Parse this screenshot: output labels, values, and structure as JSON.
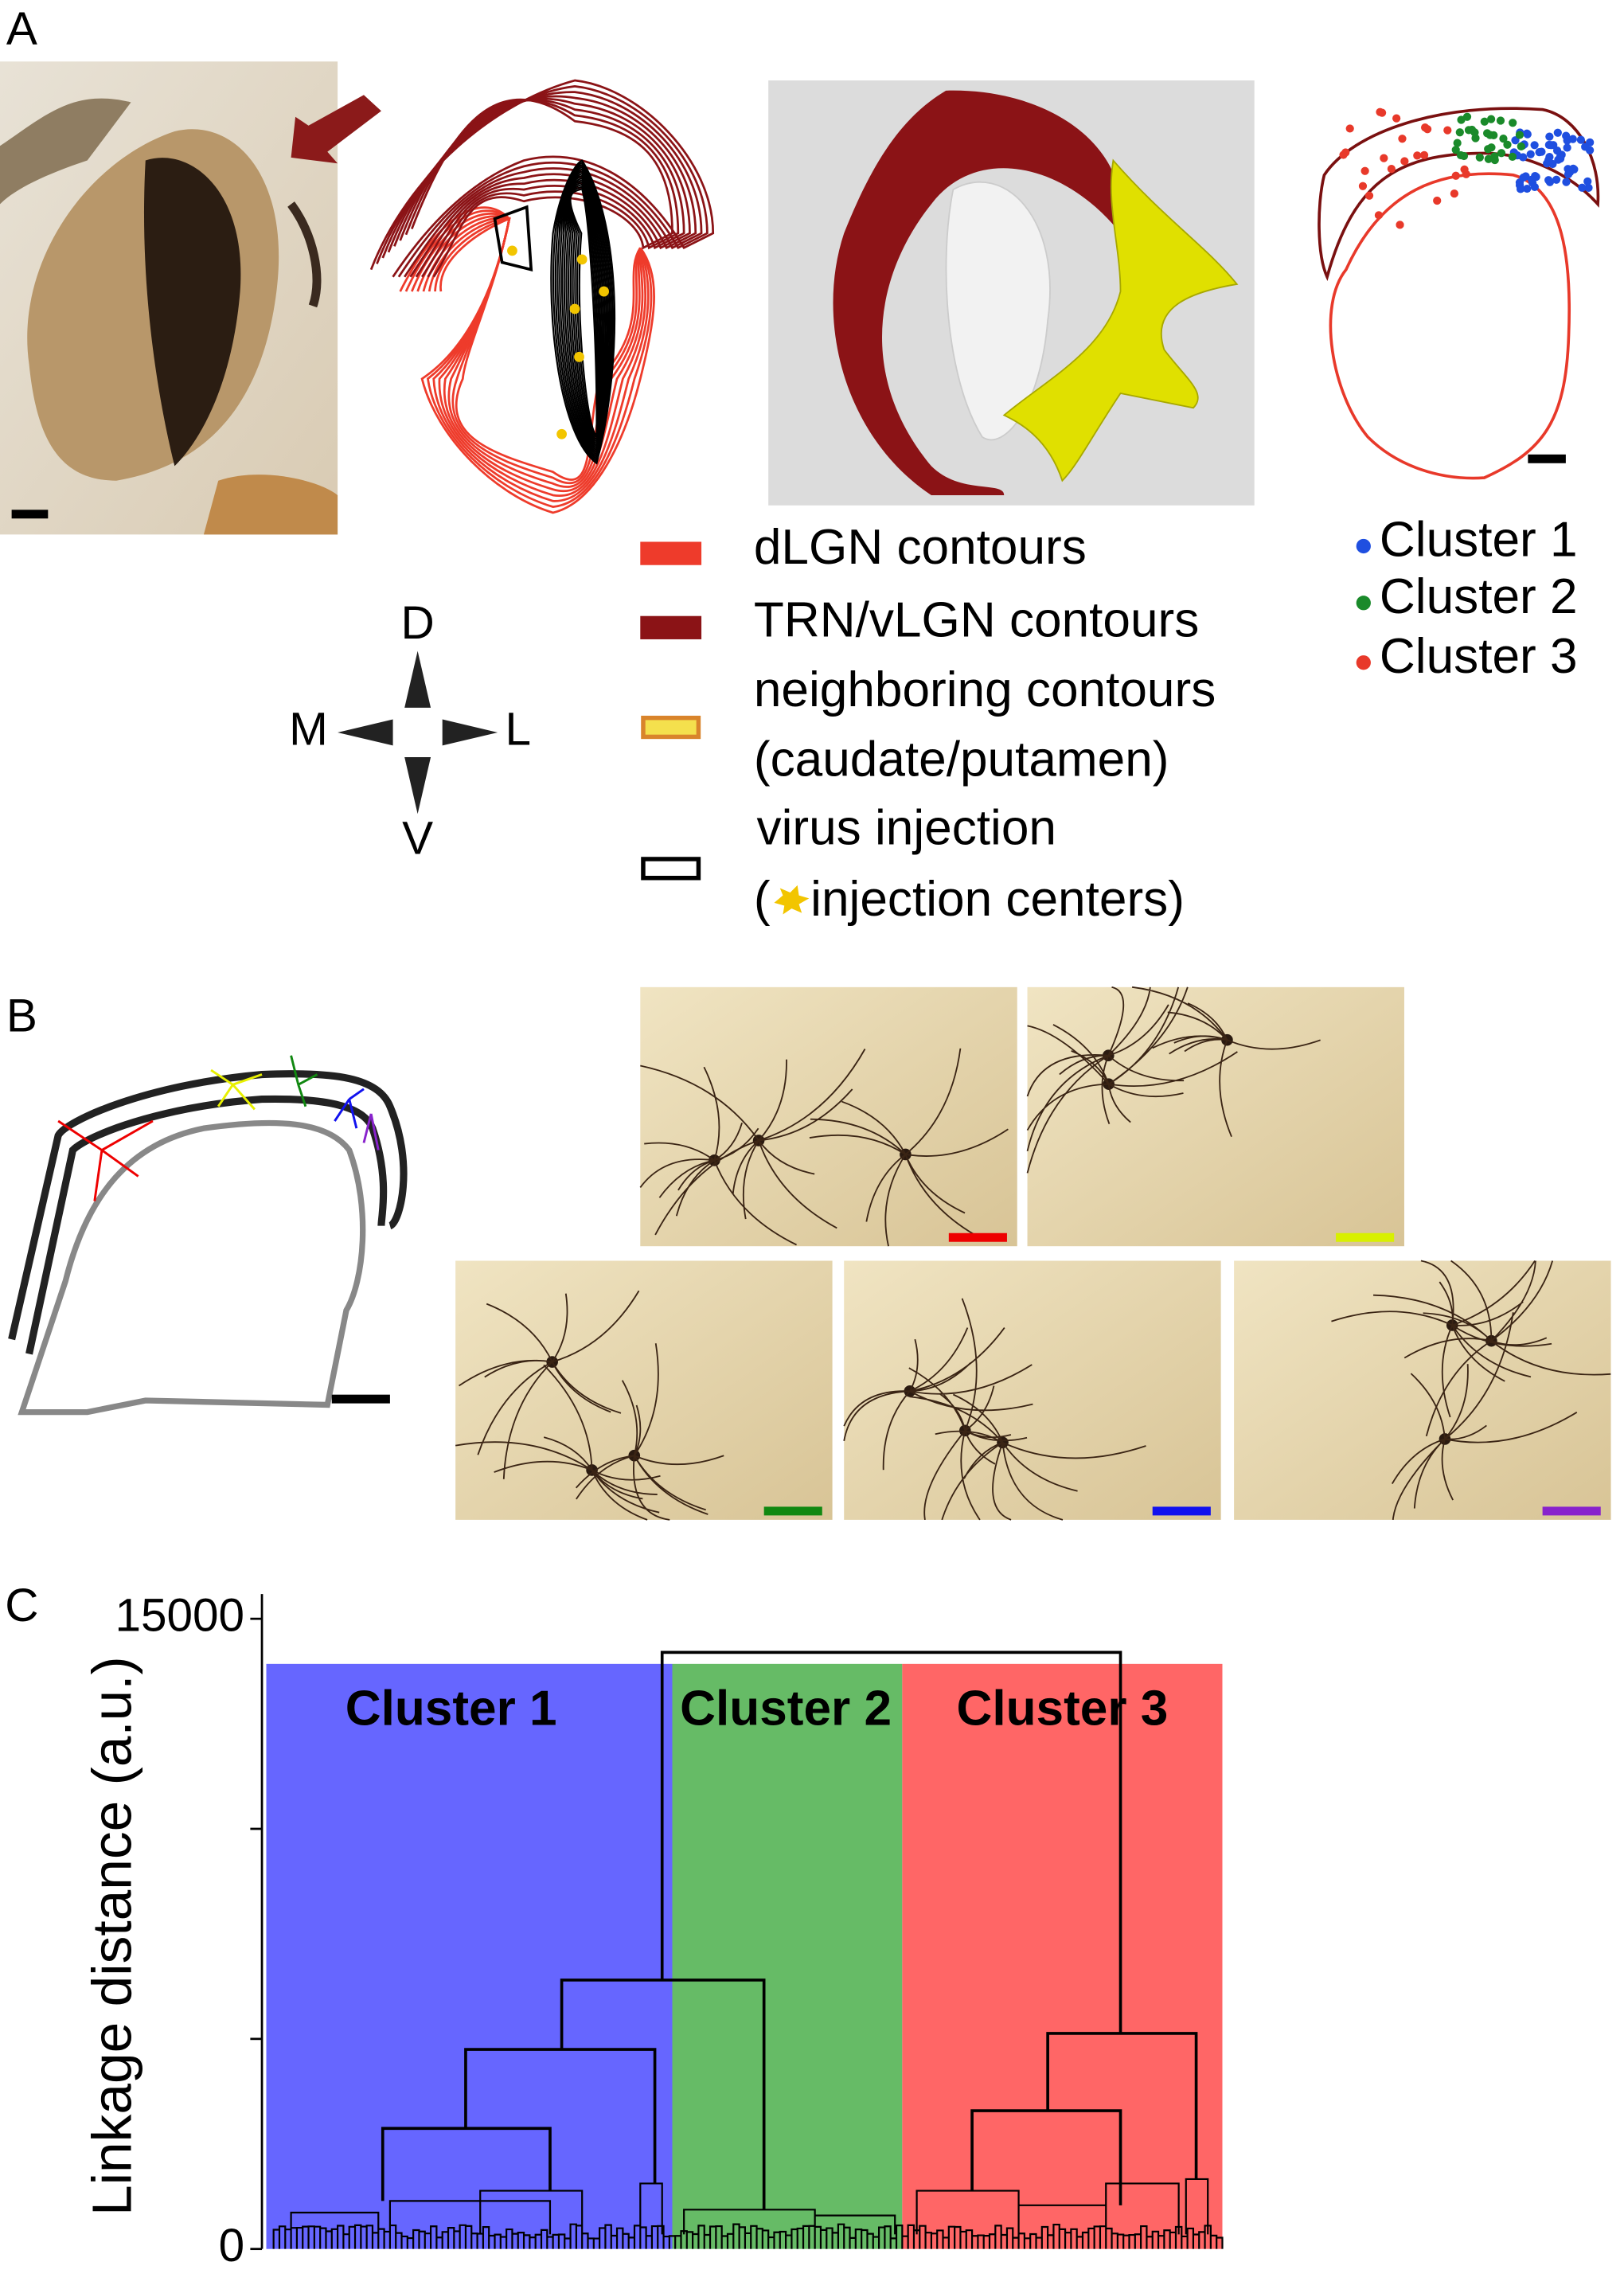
{
  "panel_a": {
    "label": "A",
    "compass": {
      "d": "D",
      "m": "M",
      "l": "L",
      "v": "V"
    },
    "legend": [
      "dLGN contours",
      "TRN/vLGN contours",
      "neighboring contours",
      "(caudate/putamen)",
      "virus injection",
      "(",
      "injection centers)"
    ],
    "cluster_legend": [
      "Cluster 1",
      "Cluster 2",
      "Cluster 3"
    ]
  },
  "panel_b": {
    "label": "B"
  },
  "chart_data": {
    "type": "dendrogram",
    "label": "C",
    "y_label": "Linkage distance (a.u.)",
    "ylim": [
      0,
      15000
    ],
    "yticks": [
      0,
      15000
    ],
    "minor_yticks": [
      5000,
      10000
    ],
    "clusters": [
      {
        "name": "Cluster 1",
        "color": "#6666ff"
      },
      {
        "name": "Cluster 2",
        "color": "#66bb66"
      },
      {
        "name": "Cluster 3",
        "color": "#ff6666"
      }
    ],
    "merge_heights": [
      14200,
      6400,
      4750,
      2870,
      5130,
      3290
    ]
  }
}
